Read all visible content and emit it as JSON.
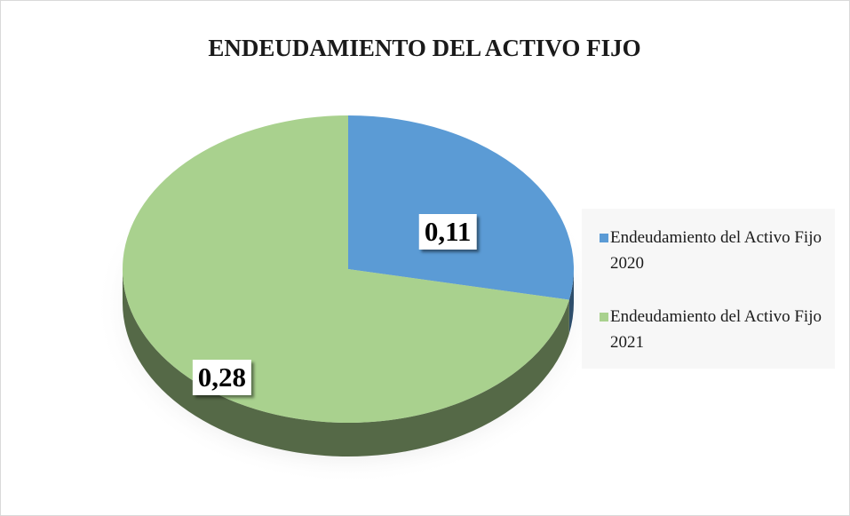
{
  "chart_data": {
    "type": "pie",
    "title": "ENDEUDAMIENTO DEL ACTIVO FIJO",
    "categories": [
      "Endeudamiento del Activo Fijo 2020",
      "Endeudamiento del Activo Fijo 2021"
    ],
    "values": [
      0.11,
      0.28
    ],
    "value_labels": [
      "0,11",
      "0,28"
    ],
    "colors": [
      "#5b9bd5",
      "#a9d18e"
    ],
    "legend": "right"
  }
}
